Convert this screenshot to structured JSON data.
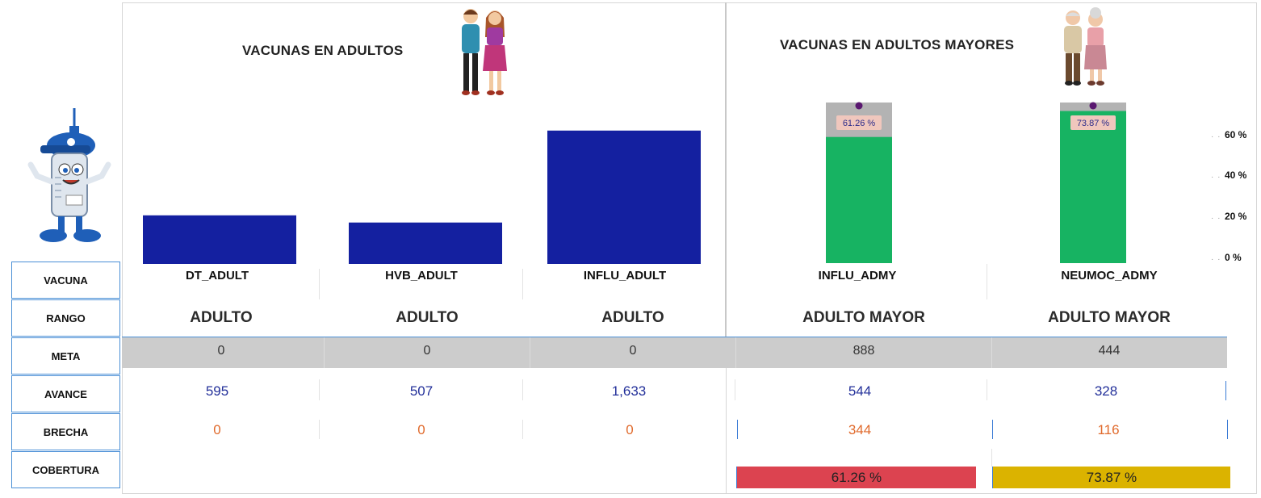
{
  "left_panel": {
    "title": "VACUNAS EN ADULTOS"
  },
  "right_panel": {
    "title": "VACUNAS EN ADULTOS MAYORES"
  },
  "row_labels": [
    "VACUNA",
    "RANGO",
    "META",
    "AVANCE",
    "BRECHA",
    "COBERTURA"
  ],
  "columns": [
    {
      "vacuna": "DT_ADULT",
      "rango": "ADULTO",
      "meta": "0",
      "avance": "595",
      "brecha": "0",
      "cobertura": ""
    },
    {
      "vacuna": "HVB_ADULT",
      "rango": "ADULTO",
      "meta": "0",
      "avance": "507",
      "brecha": "0",
      "cobertura": ""
    },
    {
      "vacuna": "INFLU_ADULT",
      "rango": "ADULTO",
      "meta": "0",
      "avance": "1,633",
      "brecha": "0",
      "cobertura": ""
    },
    {
      "vacuna": "INFLU_ADMY",
      "rango": "ADULTO MAYOR",
      "meta": "888",
      "avance": "544",
      "brecha": "344",
      "cobertura": "61.26 %"
    },
    {
      "vacuna": "NEUMOC_ADMY",
      "rango": "ADULTO MAYOR",
      "meta": "444",
      "avance": "328",
      "brecha": "116",
      "cobertura": "73.87 %"
    }
  ],
  "chart_data": [
    {
      "type": "bar",
      "categories": [
        "DT_ADULT",
        "HVB_ADULT",
        "INFLU_ADULT"
      ],
      "values": [
        595,
        507,
        1633
      ],
      "ylim": [
        0,
        1700
      ],
      "color": "#1420a0"
    },
    {
      "type": "bar",
      "categories": [
        "INFLU_ADMY",
        "NEUMOC_ADMY"
      ],
      "values": [
        61.26,
        73.87
      ],
      "value_labels": [
        "61.26 %",
        "73.87 %"
      ],
      "target": [
        100,
        100
      ],
      "y_ticks": [
        "0 %",
        "20 %",
        "40 %",
        "60 %"
      ],
      "fill_color": "#17b362",
      "track_color": "#b3b3b3"
    }
  ],
  "colors": {
    "cobertura_low": "#dc4350",
    "cobertura_mid": "#dbb300",
    "meta_band": "#cccccc",
    "avance_text": "#23309a",
    "brecha_text": "#e06a2c"
  },
  "icons": [
    "syringe-mascot-icon",
    "adult-couple-icon",
    "elderly-couple-icon"
  ]
}
